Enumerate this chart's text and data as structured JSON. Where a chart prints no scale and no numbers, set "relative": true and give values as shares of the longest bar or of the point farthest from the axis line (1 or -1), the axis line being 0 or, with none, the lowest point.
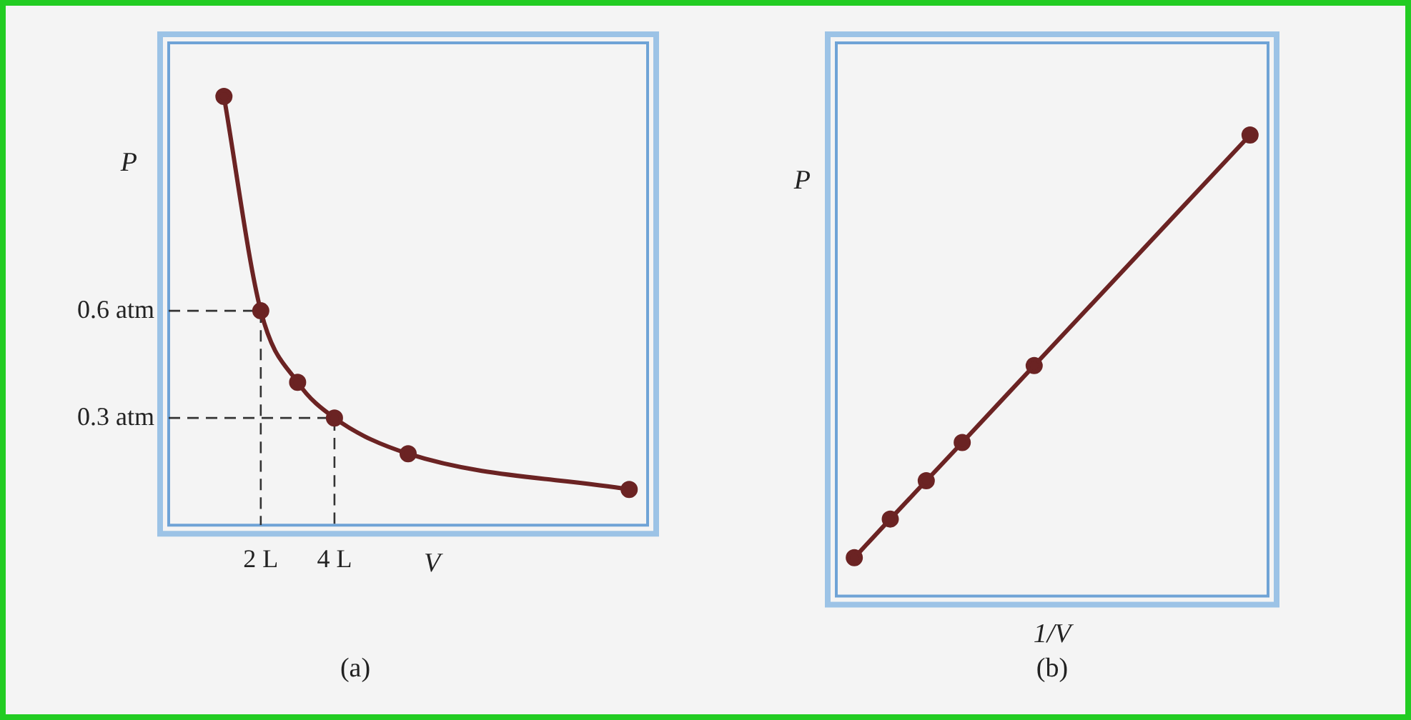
{
  "chart_data": [
    {
      "type": "line",
      "title": "(a)",
      "xlabel": "V",
      "ylabel": "P",
      "x": [
        1,
        2,
        3,
        4,
        6,
        12
      ],
      "series": [
        {
          "color": "#6b2323",
          "values": [
            1.2,
            0.6,
            0.4,
            0.3,
            0.2,
            0.1
          ]
        },
        {
          "color": "#333333",
          "x": [
            -0.5,
            2,
            2
          ],
          "values": [
            0.6,
            0.6,
            0
          ],
          "line_style": "dashed",
          "marker": "none"
        },
        {
          "color": "#333333",
          "x": [
            -0.5,
            4,
            4
          ],
          "values": [
            0.3,
            0.3,
            0
          ],
          "line_style": "dashed",
          "marker": "none"
        }
      ],
      "xlim": [
        -0.5,
        12.5
      ],
      "ylim": [
        0,
        1.35
      ],
      "xticks": [
        {
          "value": 2,
          "label": "2 L"
        },
        {
          "value": 4,
          "label": "4 L"
        }
      ],
      "yticks": [
        {
          "value": 0.3,
          "label": "0.3 atm"
        },
        {
          "value": 0.6,
          "label": "0.6 atm"
        }
      ],
      "grid": false,
      "legend": false,
      "marker": "circle",
      "line_style": "solid"
    },
    {
      "type": "line",
      "title": "(b)",
      "xlabel": "1/V",
      "ylabel": "P",
      "relative": true,
      "categories": [
        null,
        null,
        null,
        null,
        null,
        null,
        null,
        null,
        null,
        null,
        null,
        null
      ],
      "series": [
        {
          "color": "#6b2323",
          "values": [
            0.083,
            0.167,
            0.25,
            0.333,
            null,
            0.5,
            null,
            null,
            null,
            null,
            null,
            1
          ]
        }
      ],
      "grid": false,
      "legend": false,
      "marker": "circle",
      "line_style": "solid",
      "tick_labels": false
    }
  ]
}
